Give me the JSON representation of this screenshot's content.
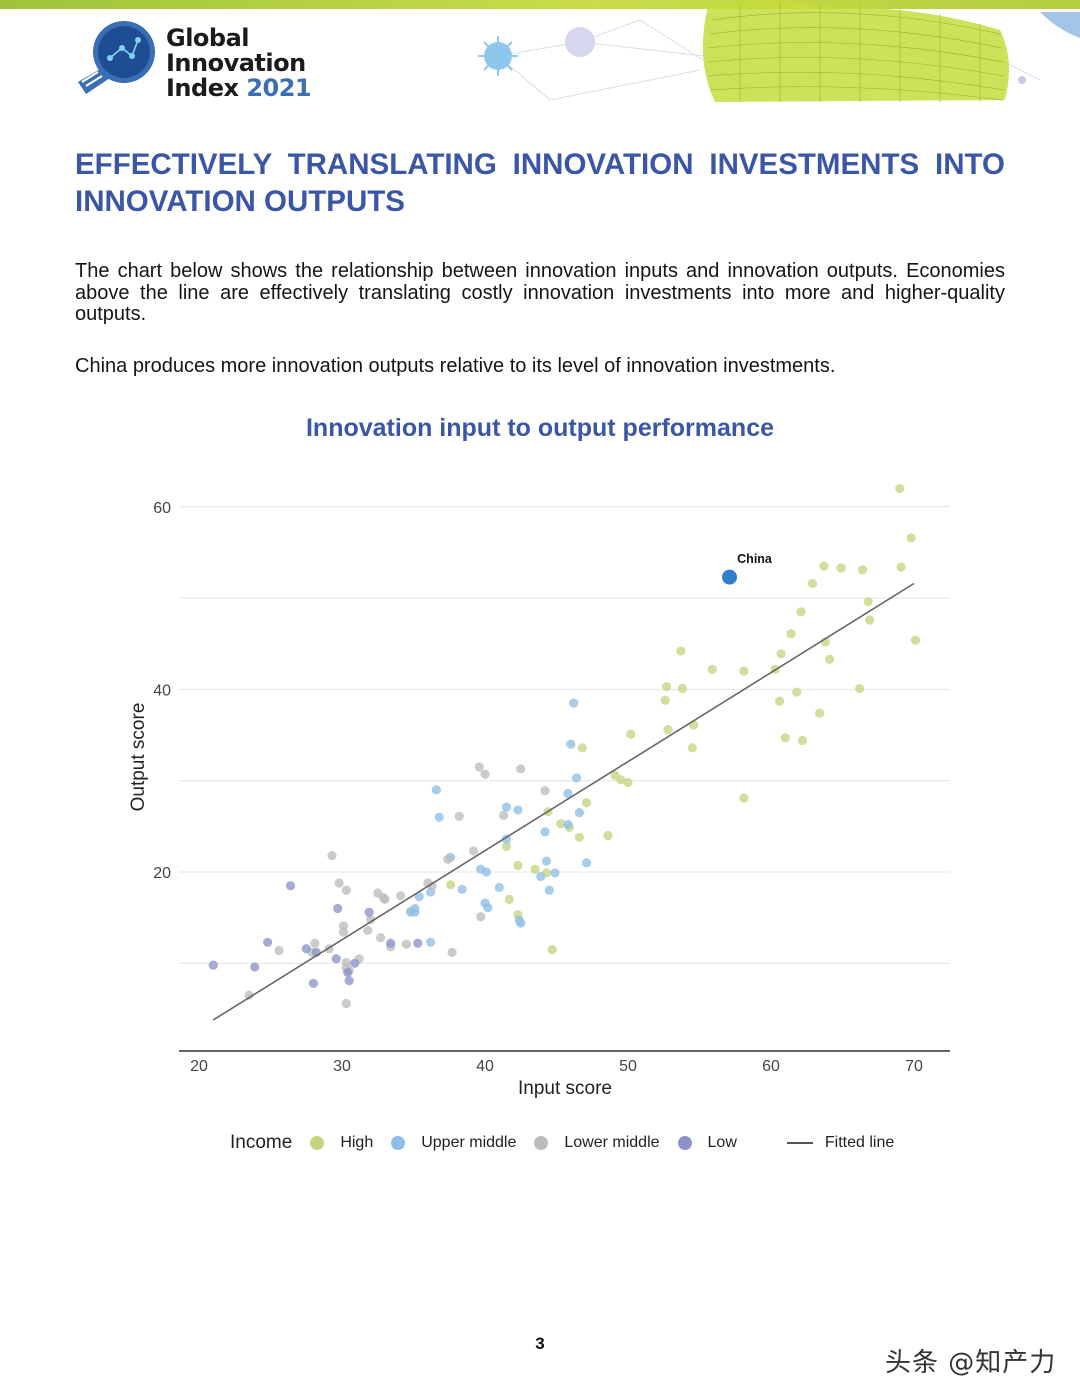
{
  "header": {
    "logo_line1": "Global",
    "logo_line2": "Innovation",
    "logo_line3": "Index",
    "logo_year": "2021"
  },
  "heading": "EFFECTIVELY TRANSLATING INNOVATION INVESTMENTS INTO INNOVATION OUTPUTS",
  "paragraph1": "The chart below shows the relationship between innovation inputs and innovation outputs. Economies above the line are effectively translating costly innovation investments into more and higher-quality outputs.",
  "paragraph2": "China produces more innovation outputs relative to its level of innovation investments.",
  "page_number": "3",
  "watermark": "头条 @知产力",
  "colors": {
    "brand_blue": "#3b56a5",
    "High": "#c3d67f",
    "Upper middle": "#8ebfe8",
    "Lower middle": "#bdbdbd",
    "Low": "#8c93cc",
    "highlight": "#2f7fcf",
    "fitted_line": "#666666"
  },
  "chart_data": {
    "type": "scatter",
    "title": "Innovation input to output performance",
    "xlabel": "Input score",
    "ylabel": "Output score",
    "xlim": [
      18.5,
      72.5
    ],
    "ylim": [
      1,
      63
    ],
    "xticks": [
      20,
      30,
      40,
      50,
      60,
      70
    ],
    "yticks": [
      20,
      40,
      60
    ],
    "grid": true,
    "legend": {
      "title": "Income",
      "placement": "bottom",
      "items": [
        "High",
        "Upper middle",
        "Lower middle",
        "Low",
        "Fitted line"
      ]
    },
    "fitted_line": {
      "name": "Fitted line",
      "from": [
        21,
        3.8
      ],
      "to": [
        70,
        51.6
      ]
    },
    "annotation": {
      "text": "China",
      "x": 57.1,
      "y": 52.3
    },
    "series": [
      {
        "name": "High",
        "points": [
          [
            69,
            62
          ],
          [
            69.8,
            56.6
          ],
          [
            69.1,
            53.4
          ],
          [
            66.4,
            53.1
          ],
          [
            64.9,
            53.3
          ],
          [
            63.7,
            53.5
          ],
          [
            62.9,
            51.6
          ],
          [
            66.8,
            49.6
          ],
          [
            62.1,
            48.5
          ],
          [
            66.9,
            47.6
          ],
          [
            70.1,
            45.4
          ],
          [
            61.4,
            46.1
          ],
          [
            63.8,
            45.2
          ],
          [
            60.7,
            43.9
          ],
          [
            64.1,
            43.3
          ],
          [
            53.7,
            44.2
          ],
          [
            52.7,
            40.3
          ],
          [
            53.8,
            40.1
          ],
          [
            55.9,
            42.2
          ],
          [
            58.1,
            42
          ],
          [
            60.3,
            42.2
          ],
          [
            66.2,
            40.1
          ],
          [
            61.8,
            39.7
          ],
          [
            52.6,
            38.8
          ],
          [
            60.6,
            38.7
          ],
          [
            63.4,
            37.4
          ],
          [
            54.6,
            36.1
          ],
          [
            52.8,
            35.6
          ],
          [
            50.2,
            35.1
          ],
          [
            61,
            34.7
          ],
          [
            62.2,
            34.4
          ],
          [
            54.5,
            33.6
          ],
          [
            46.8,
            33.6
          ],
          [
            49.1,
            30.6
          ],
          [
            49.5,
            30.1
          ],
          [
            50,
            29.8
          ],
          [
            58.1,
            28.1
          ],
          [
            47.1,
            27.6
          ],
          [
            44.4,
            26.6
          ],
          [
            45.3,
            25.3
          ],
          [
            45.9,
            24.9
          ],
          [
            46.6,
            23.8
          ],
          [
            48.6,
            24
          ],
          [
            41.5,
            22.8
          ],
          [
            42.3,
            20.7
          ],
          [
            43.5,
            20.3
          ],
          [
            44.3,
            19.9
          ],
          [
            37.6,
            18.6
          ],
          [
            41.7,
            17
          ],
          [
            34.8,
            15.7
          ],
          [
            42.3,
            15.3
          ],
          [
            44.7,
            11.5
          ]
        ]
      },
      {
        "name": "Upper middle",
        "points": [
          [
            46.2,
            38.5
          ],
          [
            46,
            34
          ],
          [
            46.4,
            30.3
          ],
          [
            45.8,
            28.6
          ],
          [
            36.6,
            29
          ],
          [
            41.5,
            27.1
          ],
          [
            42.3,
            26.8
          ],
          [
            36.8,
            26
          ],
          [
            46.6,
            26.5
          ],
          [
            45.8,
            25.2
          ],
          [
            44.2,
            24.4
          ],
          [
            41.5,
            23.6
          ],
          [
            37.6,
            21.6
          ],
          [
            44.3,
            21.2
          ],
          [
            47.1,
            21
          ],
          [
            39.7,
            20.3
          ],
          [
            40.1,
            20
          ],
          [
            43.9,
            19.5
          ],
          [
            44.9,
            19.9
          ],
          [
            38.4,
            18.1
          ],
          [
            41,
            18.3
          ],
          [
            44.5,
            18
          ],
          [
            36.2,
            17.8
          ],
          [
            35.4,
            17.3
          ],
          [
            40,
            16.6
          ],
          [
            35.1,
            16
          ],
          [
            40.2,
            16.1
          ],
          [
            35.1,
            15.6
          ],
          [
            34.8,
            15.6
          ],
          [
            42.4,
            14.7
          ],
          [
            42.5,
            14.4
          ],
          [
            36.2,
            12.3
          ]
        ]
      },
      {
        "name": "Lower middle",
        "points": [
          [
            39.6,
            31.5
          ],
          [
            40,
            30.7
          ],
          [
            42.5,
            31.3
          ],
          [
            44.2,
            28.9
          ],
          [
            41.3,
            26.2
          ],
          [
            38.2,
            26.1
          ],
          [
            29.3,
            21.8
          ],
          [
            39.2,
            22.3
          ],
          [
            37.4,
            21.4
          ],
          [
            29.8,
            18.8
          ],
          [
            36,
            18.8
          ],
          [
            32.5,
            17.7
          ],
          [
            32.9,
            17.2
          ],
          [
            34.1,
            17.4
          ],
          [
            30.3,
            18
          ],
          [
            33,
            17
          ],
          [
            36.3,
            18.5
          ],
          [
            30.1,
            14.1
          ],
          [
            30.1,
            13.4
          ],
          [
            32,
            14.8
          ],
          [
            31.8,
            13.6
          ],
          [
            39.7,
            15.1
          ],
          [
            32.7,
            12.8
          ],
          [
            33.4,
            11.8
          ],
          [
            34.5,
            12.1
          ],
          [
            28.1,
            12.2
          ],
          [
            29.1,
            11.6
          ],
          [
            25.6,
            11.4
          ],
          [
            37.7,
            11.2
          ],
          [
            27.9,
            11.2
          ],
          [
            31.2,
            10.5
          ],
          [
            30.3,
            10.1
          ],
          [
            30.5,
            9.2
          ],
          [
            30.3,
            9.5
          ],
          [
            23.5,
            6.5
          ],
          [
            30.3,
            5.6
          ]
        ]
      },
      {
        "name": "Low",
        "points": [
          [
            26.4,
            18.5
          ],
          [
            29.7,
            16
          ],
          [
            31.9,
            15.6
          ],
          [
            24.8,
            12.3
          ],
          [
            27.5,
            11.6
          ],
          [
            28.2,
            11.2
          ],
          [
            33.4,
            12.2
          ],
          [
            35.3,
            12.2
          ],
          [
            29.6,
            10.5
          ],
          [
            21,
            9.8
          ],
          [
            23.9,
            9.6
          ],
          [
            30.9,
            10
          ],
          [
            30.4,
            9
          ],
          [
            30.5,
            8.1
          ],
          [
            28,
            7.8
          ]
        ]
      },
      {
        "name": "China",
        "points": [
          [
            57.1,
            52.3
          ]
        ]
      }
    ]
  }
}
